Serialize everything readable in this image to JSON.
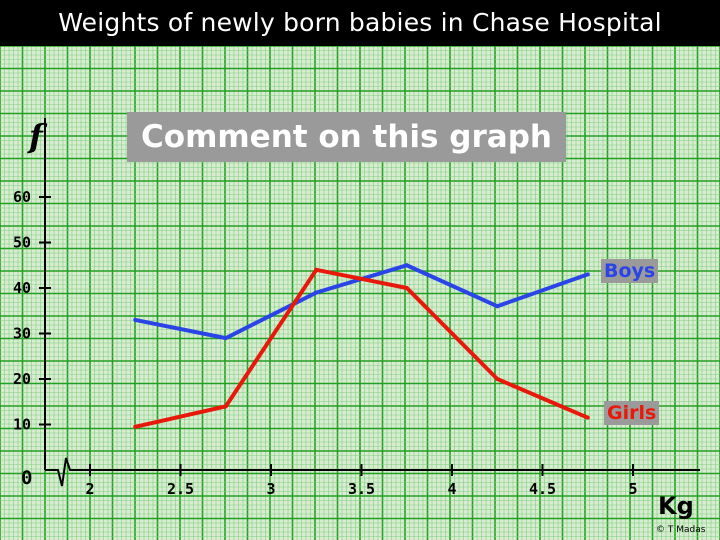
{
  "title": "Weights of newly born babies in Chase Hospital",
  "prompt": "Comment on this graph",
  "copyright": "© T Madas",
  "colors": {
    "background": "#d9ecd2",
    "grid_minor": "#7fd07f",
    "grid_major": "#22a022",
    "boys": "#2a44e8",
    "girls": "#e8180a"
  },
  "chart_data": {
    "type": "line",
    "ylabel": "f",
    "xlabel": "Kg",
    "origin_label": "0",
    "x_ticks": [
      "2",
      "2.5",
      "3",
      "3.5",
      "4",
      "4.5",
      "5"
    ],
    "y_ticks": [
      "10",
      "20",
      "30",
      "40",
      "50",
      "60"
    ],
    "xlim": [
      1.75,
      5.25
    ],
    "ylim": [
      0,
      62
    ],
    "axis_break": true,
    "grid": true,
    "series": [
      {
        "name": "Boys",
        "color": "#2a44e8",
        "x": [
          2.25,
          2.75,
          3.25,
          3.75,
          4.25,
          4.75
        ],
        "y": [
          33,
          29,
          39,
          45,
          36,
          43
        ]
      },
      {
        "name": "Girls",
        "color": "#e8180a",
        "x": [
          2.25,
          2.75,
          3.25,
          3.75,
          4.25,
          4.75
        ],
        "y": [
          9.5,
          14,
          44,
          40,
          20,
          11.5
        ]
      }
    ]
  }
}
